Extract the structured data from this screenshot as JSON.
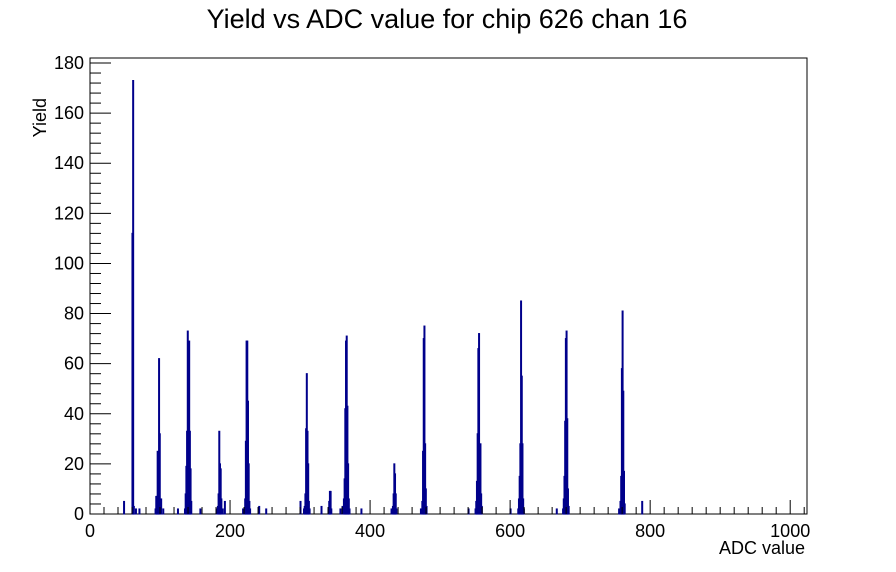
{
  "chart_data": {
    "type": "bar",
    "title": "Yield vs ADC value for chip 626 chan 16",
    "xlabel": "ADC value",
    "ylabel": "Yield",
    "xlim": [
      0,
      1024
    ],
    "ylim": [
      0,
      182
    ],
    "x_ticks": [
      0,
      200,
      400,
      600,
      800,
      1000
    ],
    "y_ticks": [
      0,
      20,
      40,
      60,
      80,
      100,
      120,
      140,
      160,
      180
    ],
    "x_tick_labels": [
      "0",
      "200",
      "400",
      "600",
      "800",
      "1000"
    ],
    "y_tick_labels": [
      "0",
      "20",
      "40",
      "60",
      "80",
      "100",
      "120",
      "140",
      "160",
      "180"
    ],
    "grid": false,
    "legend": "none",
    "series_color": "#00008b",
    "bins": [
      [
        48,
        5
      ],
      [
        60,
        112
      ],
      [
        61,
        173
      ],
      [
        62,
        3
      ],
      [
        65,
        2
      ],
      [
        70,
        2
      ],
      [
        93,
        2
      ],
      [
        94,
        7
      ],
      [
        95,
        7
      ],
      [
        96,
        25
      ],
      [
        97,
        7
      ],
      [
        98,
        62
      ],
      [
        99,
        32
      ],
      [
        101,
        6
      ],
      [
        104,
        2
      ],
      [
        125,
        2
      ],
      [
        135,
        2
      ],
      [
        136,
        8
      ],
      [
        137,
        19
      ],
      [
        138,
        33
      ],
      [
        139,
        73
      ],
      [
        140,
        33
      ],
      [
        141,
        69
      ],
      [
        142,
        33
      ],
      [
        143,
        18
      ],
      [
        144,
        5
      ],
      [
        157,
        2
      ],
      [
        180,
        2
      ],
      [
        182,
        3
      ],
      [
        183,
        8
      ],
      [
        184,
        33
      ],
      [
        185,
        20
      ],
      [
        186,
        18
      ],
      [
        187,
        6
      ],
      [
        189,
        2
      ],
      [
        192,
        5
      ],
      [
        218,
        2
      ],
      [
        220,
        2
      ],
      [
        221,
        6
      ],
      [
        222,
        29
      ],
      [
        223,
        69
      ],
      [
        224,
        69
      ],
      [
        225,
        45
      ],
      [
        226,
        20
      ],
      [
        227,
        5
      ],
      [
        228,
        2
      ],
      [
        241,
        3
      ],
      [
        251,
        2
      ],
      [
        300,
        5
      ],
      [
        305,
        2
      ],
      [
        306,
        3
      ],
      [
        307,
        8
      ],
      [
        308,
        34
      ],
      [
        309,
        56
      ],
      [
        310,
        33
      ],
      [
        311,
        20
      ],
      [
        312,
        5
      ],
      [
        313,
        2
      ],
      [
        330,
        3
      ],
      [
        340,
        2
      ],
      [
        341,
        5
      ],
      [
        342,
        9
      ],
      [
        343,
        9
      ],
      [
        344,
        2
      ],
      [
        357,
        2
      ],
      [
        360,
        3
      ],
      [
        362,
        6
      ],
      [
        363,
        14
      ],
      [
        364,
        42
      ],
      [
        365,
        69
      ],
      [
        366,
        71
      ],
      [
        367,
        43
      ],
      [
        368,
        20
      ],
      [
        369,
        6
      ],
      [
        370,
        2
      ],
      [
        387,
        2
      ],
      [
        430,
        2
      ],
      [
        432,
        3
      ],
      [
        433,
        8
      ],
      [
        434,
        20
      ],
      [
        435,
        16
      ],
      [
        436,
        8
      ],
      [
        437,
        2
      ],
      [
        472,
        2
      ],
      [
        474,
        5
      ],
      [
        475,
        25
      ],
      [
        476,
        70
      ],
      [
        477,
        75
      ],
      [
        478,
        28
      ],
      [
        479,
        10
      ],
      [
        480,
        3
      ],
      [
        540,
        2
      ],
      [
        550,
        2
      ],
      [
        551,
        5
      ],
      [
        552,
        13
      ],
      [
        553,
        32
      ],
      [
        554,
        66
      ],
      [
        555,
        72
      ],
      [
        556,
        24
      ],
      [
        557,
        28
      ],
      [
        558,
        8
      ],
      [
        559,
        3
      ],
      [
        600,
        2
      ],
      [
        611,
        2
      ],
      [
        612,
        6
      ],
      [
        613,
        15
      ],
      [
        614,
        28
      ],
      [
        615,
        85
      ],
      [
        616,
        55
      ],
      [
        617,
        28
      ],
      [
        618,
        6
      ],
      [
        619,
        2
      ],
      [
        666,
        2
      ],
      [
        675,
        2
      ],
      [
        676,
        6
      ],
      [
        677,
        15
      ],
      [
        678,
        37
      ],
      [
        679,
        70
      ],
      [
        680,
        73
      ],
      [
        681,
        38
      ],
      [
        682,
        10
      ],
      [
        683,
        3
      ],
      [
        755,
        2
      ],
      [
        757,
        5
      ],
      [
        758,
        15
      ],
      [
        759,
        58
      ],
      [
        760,
        81
      ],
      [
        761,
        49
      ],
      [
        762,
        17
      ],
      [
        763,
        4
      ],
      [
        788,
        5
      ]
    ]
  }
}
